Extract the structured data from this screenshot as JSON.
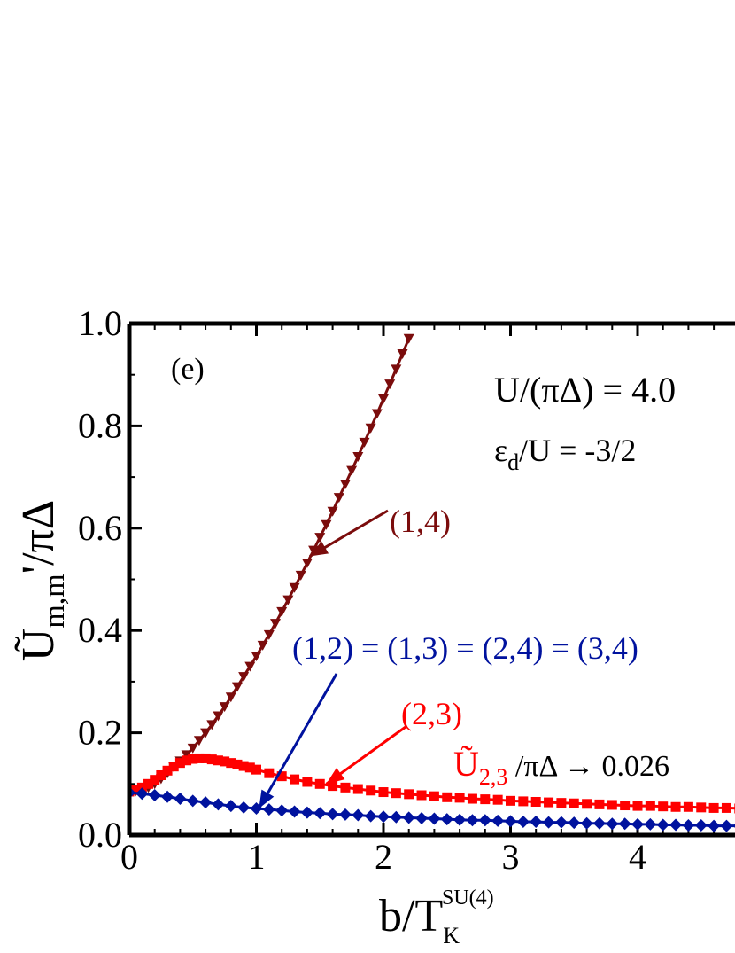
{
  "chart_data": {
    "type": "scatter",
    "panel_label": "(e)",
    "xlim": [
      0,
      4.8
    ],
    "ylim": [
      0.0,
      1.0
    ],
    "x_ticks": [
      "0",
      "1",
      "2",
      "3",
      "4"
    ],
    "y_ticks": [
      "0.0",
      "0.2",
      "0.4",
      "0.6",
      "0.8",
      "1.0"
    ],
    "xlabel": {
      "main": "b/T",
      "sub": "K",
      "sup": "SU(4)"
    },
    "ylabel": {
      "main": "Ũ",
      "sub": "m,m",
      "prime": "'",
      "tail": "/πΔ"
    },
    "params": [
      {
        "text": "U/(πΔ) = 4.0"
      },
      {
        "main": "ε",
        "sub": "d",
        "tail": "/U = -3/2"
      }
    ],
    "series": [
      {
        "name": "(1,4)",
        "color": "#7b0c0c",
        "marker": "triangle-down",
        "x": [
          0.0,
          0.05,
          0.1,
          0.15,
          0.2,
          0.25,
          0.3,
          0.35,
          0.4,
          0.45,
          0.5,
          0.55,
          0.6,
          0.65,
          0.7,
          0.75,
          0.8,
          0.85,
          0.9,
          0.95,
          1.0,
          1.05,
          1.1,
          1.15,
          1.2,
          1.25,
          1.3,
          1.35,
          1.4,
          1.45,
          1.5,
          1.55,
          1.6,
          1.65,
          1.7,
          1.75,
          1.8,
          1.85,
          1.9,
          1.95,
          2.0,
          2.05,
          2.1,
          2.15,
          2.2
        ],
        "y": [
          0.085,
          0.086,
          0.088,
          0.093,
          0.1,
          0.11,
          0.121,
          0.133,
          0.145,
          0.157,
          0.17,
          0.185,
          0.2,
          0.216,
          0.233,
          0.251,
          0.27,
          0.29,
          0.31,
          0.33,
          0.35,
          0.371,
          0.392,
          0.414,
          0.437,
          0.46,
          0.484,
          0.508,
          0.532,
          0.557,
          0.582,
          0.607,
          0.633,
          0.66,
          0.686,
          0.713,
          0.74,
          0.768,
          0.796,
          0.824,
          0.853,
          0.882,
          0.911,
          0.941,
          0.971
        ]
      },
      {
        "name": "(2,3)",
        "color": "#ff0000",
        "marker": "square",
        "x": [
          0.0,
          0.05,
          0.1,
          0.15,
          0.2,
          0.25,
          0.3,
          0.35,
          0.4,
          0.45,
          0.5,
          0.55,
          0.6,
          0.65,
          0.7,
          0.75,
          0.8,
          0.85,
          0.9,
          0.95,
          1.0,
          1.1,
          1.2,
          1.3,
          1.4,
          1.5,
          1.6,
          1.7,
          1.8,
          1.9,
          2.0,
          2.1,
          2.2,
          2.3,
          2.4,
          2.5,
          2.6,
          2.7,
          2.8,
          2.9,
          3.0,
          3.1,
          3.2,
          3.3,
          3.4,
          3.5,
          3.6,
          3.7,
          3.8,
          3.9,
          4.0,
          4.1,
          4.2,
          4.3,
          4.4,
          4.5,
          4.6,
          4.7,
          4.8
        ],
        "y": [
          0.085,
          0.088,
          0.093,
          0.1,
          0.108,
          0.117,
          0.126,
          0.134,
          0.141,
          0.146,
          0.149,
          0.15,
          0.15,
          0.148,
          0.146,
          0.144,
          0.141,
          0.138,
          0.135,
          0.132,
          0.128,
          0.121,
          0.115,
          0.109,
          0.104,
          0.1,
          0.096,
          0.093,
          0.09,
          0.087,
          0.084,
          0.082,
          0.08,
          0.078,
          0.076,
          0.074,
          0.073,
          0.071,
          0.07,
          0.069,
          0.067,
          0.066,
          0.065,
          0.064,
          0.063,
          0.062,
          0.061,
          0.06,
          0.059,
          0.058,
          0.057,
          0.057,
          0.056,
          0.055,
          0.055,
          0.054,
          0.053,
          0.053,
          0.052
        ]
      },
      {
        "name": "(1,2) = (1,3) = (2,4) = (3,4)",
        "color": "#00129e",
        "marker": "diamond",
        "x": [
          0.0,
          0.1,
          0.2,
          0.3,
          0.4,
          0.5,
          0.6,
          0.7,
          0.8,
          0.9,
          1.0,
          1.1,
          1.2,
          1.3,
          1.4,
          1.5,
          1.6,
          1.7,
          1.8,
          1.9,
          2.0,
          2.1,
          2.2,
          2.3,
          2.4,
          2.5,
          2.6,
          2.7,
          2.8,
          2.9,
          3.0,
          3.1,
          3.2,
          3.3,
          3.4,
          3.5,
          3.6,
          3.7,
          3.8,
          3.9,
          4.0,
          4.1,
          4.2,
          4.3,
          4.4,
          4.5,
          4.6,
          4.7,
          4.8
        ],
        "y": [
          0.083,
          0.081,
          0.078,
          0.075,
          0.071,
          0.067,
          0.064,
          0.06,
          0.057,
          0.054,
          0.052,
          0.05,
          0.048,
          0.046,
          0.044,
          0.043,
          0.041,
          0.04,
          0.039,
          0.037,
          0.036,
          0.035,
          0.034,
          0.033,
          0.032,
          0.031,
          0.03,
          0.029,
          0.029,
          0.028,
          0.027,
          0.026,
          0.026,
          0.025,
          0.025,
          0.024,
          0.023,
          0.023,
          0.022,
          0.022,
          0.021,
          0.021,
          0.02,
          0.02,
          0.019,
          0.019,
          0.018,
          0.018,
          0.018
        ]
      }
    ],
    "annotations": [
      {
        "label": "(1,4)",
        "color": "#7b0c0c",
        "arrow_to": [
          1.42,
          0.545
        ]
      },
      {
        "label": "(1,2) = (1,3) = (2,4) = (3,4)",
        "color": "#00129e",
        "arrow_to": [
          1.02,
          0.052
        ]
      },
      {
        "label": "(2,3)",
        "color": "#ff0000",
        "arrow_to": [
          1.55,
          0.1
        ]
      }
    ],
    "asymptote_note": {
      "main": "Ũ",
      "sub": "2,3",
      "tail": " /πΔ → 0.026",
      "color_main": "#ff0000",
      "color_tail": "#000000"
    }
  }
}
